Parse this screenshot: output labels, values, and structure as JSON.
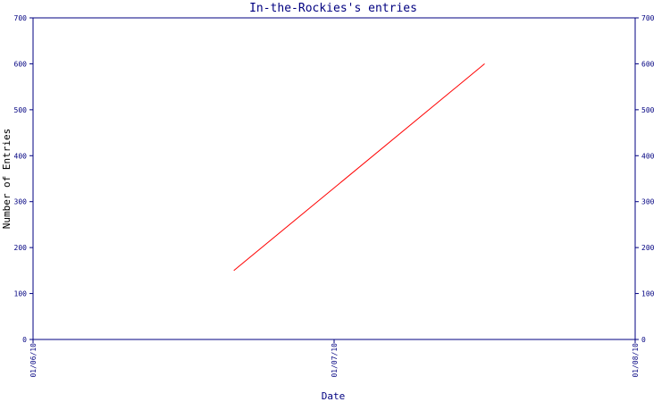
{
  "chart_data": {
    "type": "line",
    "title": "In-the-Rockies's entries",
    "xlabel": "Date",
    "ylabel": "Number of Entries",
    "x_ticks": [
      "01/06/10",
      "01/07/10",
      "01/08/10"
    ],
    "y_ticks": [
      0,
      100,
      200,
      300,
      400,
      500,
      600,
      700
    ],
    "ylim": [
      0,
      700
    ],
    "x_range": [
      "01/06/10",
      "01/08/10"
    ],
    "grid": false,
    "series": [
      {
        "color": "#ff0000",
        "points": [
          {
            "x": "01/06/10 16:00",
            "y": 150
          },
          {
            "x": "01/07/10 12:00",
            "y": 600
          }
        ]
      }
    ]
  },
  "colors": {
    "axis": "#000080",
    "text": "#000080",
    "series": "#ff0000"
  }
}
